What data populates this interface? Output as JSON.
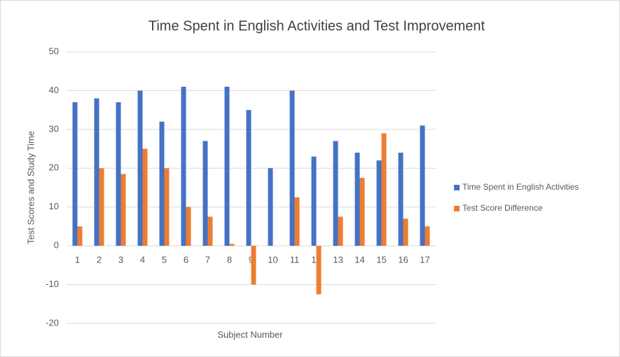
{
  "chart_data": {
    "type": "bar",
    "title": "Time Spent in English Activities and Test Improvement",
    "x_label": "Subject Number",
    "y_label": "Test Scores and Study Time",
    "categories": [
      "1",
      "2",
      "3",
      "4",
      "5",
      "6",
      "7",
      "8",
      "9",
      "10",
      "11",
      "12",
      "13",
      "14",
      "15",
      "16",
      "17"
    ],
    "series": [
      {
        "name": "Time Spent in English Activities",
        "color": "#4472c4",
        "values": [
          37,
          38,
          37,
          40,
          32,
          41,
          27,
          41,
          35,
          20,
          40,
          23,
          27,
          24,
          22,
          24,
          31
        ]
      },
      {
        "name": "Test Score Difference",
        "color": "#ed7d31",
        "values": [
          5,
          20,
          18.5,
          25,
          20,
          10,
          7.5,
          0.5,
          -10,
          0,
          12.5,
          -12.5,
          7.5,
          17.5,
          29,
          7,
          5
        ]
      }
    ],
    "ylim": [
      -20,
      50
    ],
    "yticks": [
      -20,
      -10,
      0,
      10,
      20,
      30,
      40,
      50
    ],
    "grid": true,
    "legend": "right"
  }
}
